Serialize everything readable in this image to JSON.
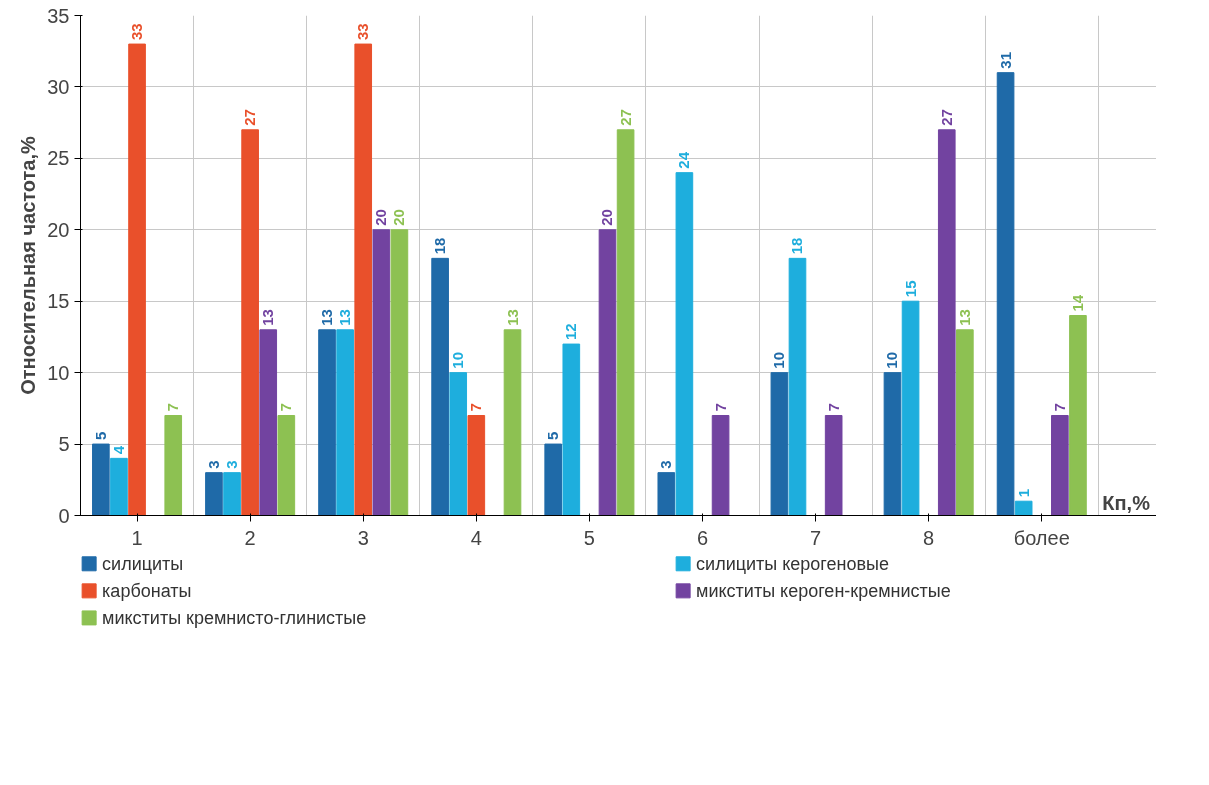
{
  "chart_data": {
    "type": "bar",
    "xlabel": "Кп,%",
    "ylabel": "Относительная частота,%",
    "categories": [
      "1",
      "2",
      "3",
      "4",
      "5",
      "6",
      "7",
      "8",
      "более"
    ],
    "series": [
      {
        "name": "силициты",
        "color": "#1f6aa8",
        "values": [
          5,
          3,
          13,
          18,
          5,
          3,
          10,
          10,
          31
        ]
      },
      {
        "name": "силициты керогеновые",
        "color": "#1eaedd",
        "values": [
          4,
          3,
          13,
          10,
          12,
          24,
          18,
          15,
          1
        ]
      },
      {
        "name": "карбонаты",
        "color": "#e9502b",
        "values": [
          33,
          27,
          33,
          7,
          null,
          null,
          null,
          null,
          null
        ]
      },
      {
        "name": "микститы кероген-кремнистые",
        "color": "#7243a0",
        "values": [
          null,
          13,
          20,
          null,
          20,
          7,
          7,
          27,
          7
        ]
      },
      {
        "name": "микститы кремнисто-глинистые",
        "color": "#8dc152",
        "values": [
          7,
          7,
          20,
          13,
          27,
          null,
          null,
          13,
          14
        ]
      }
    ],
    "ylim": [
      0,
      35
    ],
    "yticks": [
      0,
      5,
      10,
      15,
      20,
      25,
      30,
      35
    ],
    "grid": true,
    "legend": "bottom",
    "data_labels": true
  }
}
